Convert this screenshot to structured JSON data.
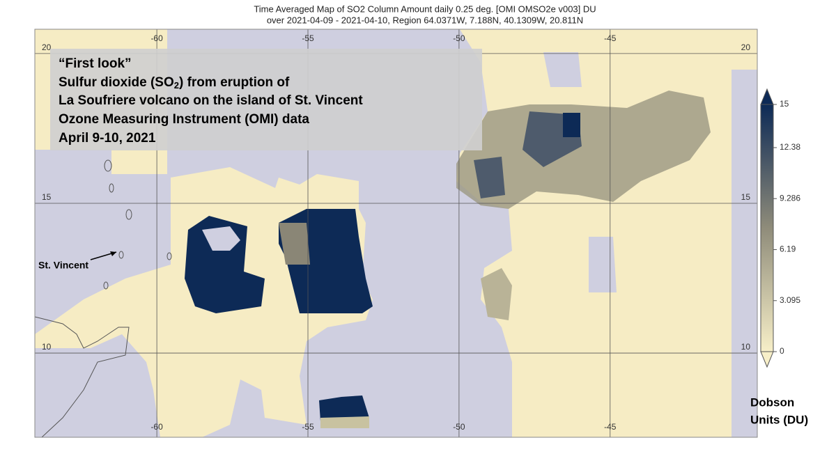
{
  "header": {
    "title_lines": [
      "Time Averaged Map of SO2 Column Amount daily 0.25 deg. [OMI OMSO2e v003] DU",
      "over 2021-04-09 - 2021-04-10, Region 64.0371W, 7.188N, 40.1309W, 20.811N"
    ]
  },
  "annotation": {
    "line1": "“First look”",
    "line2": [
      "Sulfur dioxide (SO",
      "2",
      ") from eruption of"
    ],
    "line3": "La Soufriere volcano on the island of St. Vincent",
    "line4": "Ozone Measuring Instrument (OMI) data",
    "line5": "April 9-10, 2021"
  },
  "map": {
    "xlim": [
      -64.0371,
      -40.1309
    ],
    "ylim": [
      7.188,
      20.811
    ],
    "lon_ticks": [
      -60,
      -55,
      -50,
      -45
    ],
    "lat_ticks": [
      20,
      15,
      10
    ],
    "place_label": "St. Vincent"
  },
  "colorbar": {
    "range": [
      0,
      15
    ],
    "ticks": [
      0,
      3.095,
      6.19,
      9.286,
      12.38,
      15
    ],
    "label_lines": [
      "Dobson",
      "Units (DU)"
    ],
    "low_color": "#f7efc8",
    "high_color": "#0d2a56"
  }
}
